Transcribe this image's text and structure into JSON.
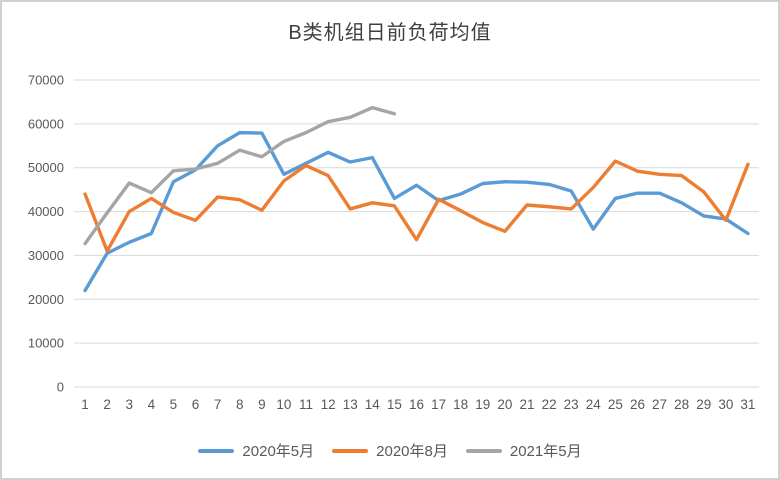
{
  "window": {
    "background": "#ffffff",
    "border_color": "#d0d0d0"
  },
  "chart_data": {
    "type": "line",
    "title": "B类机组日前负荷均值",
    "title_color": "#3f3f3f",
    "categories": [
      1,
      2,
      3,
      4,
      5,
      6,
      7,
      8,
      9,
      10,
      11,
      12,
      13,
      14,
      15,
      16,
      17,
      18,
      19,
      20,
      21,
      22,
      23,
      24,
      25,
      26,
      27,
      28,
      29,
      30,
      31
    ],
    "series": [
      {
        "name": "2020年5月",
        "color": "#5B9BD5",
        "values": [
          22000,
          30500,
          33000,
          35000,
          46800,
          49500,
          55000,
          58000,
          57900,
          48500,
          51000,
          53500,
          51300,
          52300,
          43000,
          46000,
          42500,
          44000,
          46400,
          46800,
          46700,
          46200,
          44700,
          36000,
          43000,
          44200,
          44200,
          42000,
          39000,
          38300,
          35000
        ]
      },
      {
        "name": "2020年8月",
        "color": "#ED7D31",
        "values": [
          44000,
          31000,
          40000,
          43000,
          39800,
          38000,
          43300,
          42700,
          40300,
          47000,
          50500,
          48200,
          40600,
          42000,
          41300,
          33600,
          42800,
          40200,
          37500,
          35500,
          41500,
          41100,
          40600,
          45500,
          51500,
          49200,
          48500,
          48200,
          44500,
          38000,
          50800
        ]
      },
      {
        "name": "2021年5月",
        "color": "#A5A5A5",
        "values": [
          32700,
          39700,
          46500,
          44300,
          49300,
          49700,
          51000,
          54000,
          52500,
          56000,
          58000,
          60500,
          61500,
          63700,
          62300,
          null,
          null,
          null,
          null,
          null,
          null,
          null,
          null,
          null,
          null,
          null,
          null,
          null,
          null,
          null,
          null
        ]
      }
    ],
    "ylim": [
      0,
      70000
    ],
    "y_ticks": [
      0,
      10000,
      20000,
      30000,
      40000,
      50000,
      60000,
      70000
    ],
    "grid": true,
    "gridline_color": "#D9D9D9",
    "axis_label_color": "#595959",
    "legend_position": "bottom"
  }
}
